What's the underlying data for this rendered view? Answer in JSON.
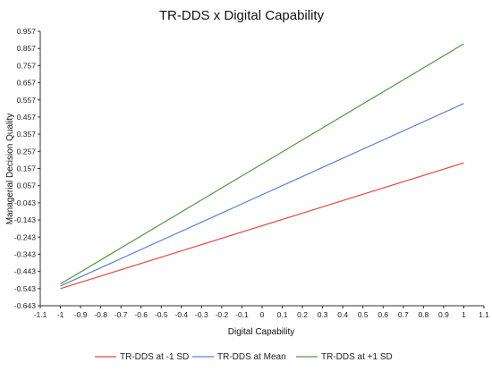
{
  "chart_data": {
    "type": "line",
    "title": "TR-DDS x Digital Capability",
    "xlabel": "Digital Capability",
    "ylabel": "Managerial Decision Quality",
    "xlim": [
      -1.1,
      1.1
    ],
    "ylim": [
      -0.643,
      0.957
    ],
    "x_ticks": [
      "-1.1",
      "-1",
      "-0.9",
      "-0.8",
      "-0.7",
      "-0.6",
      "-0.5",
      "-0.4",
      "-0.3",
      "-0.2",
      "-0.1",
      "0",
      "0.1",
      "0.2",
      "0.3",
      "0.4",
      "0.5",
      "0.6",
      "0.7",
      "0.8",
      "0.9",
      "1",
      "1.1"
    ],
    "y_ticks": [
      "0.957",
      "0.857",
      "0.757",
      "0.657",
      "0.557",
      "0.457",
      "0.357",
      "0.257",
      "0.157",
      "0.057",
      "-0.043",
      "-0.143",
      "-0.243",
      "-0.343",
      "-0.443",
      "-0.543",
      "-0.643"
    ],
    "grid": false,
    "legend_position": "bottom",
    "series": [
      {
        "name": "TR-DDS at -1 SD",
        "color": "#e8473f",
        "x": [
          -1,
          1
        ],
        "y": [
          -0.543,
          0.19
        ]
      },
      {
        "name": "TR-DDS at Mean",
        "color": "#5b7fd6",
        "x": [
          -1,
          1
        ],
        "y": [
          -0.528,
          0.536
        ]
      },
      {
        "name": "TR-DDS at +1 SD",
        "color": "#4e9a3f",
        "x": [
          -1,
          1
        ],
        "y": [
          -0.516,
          0.884
        ]
      }
    ]
  }
}
